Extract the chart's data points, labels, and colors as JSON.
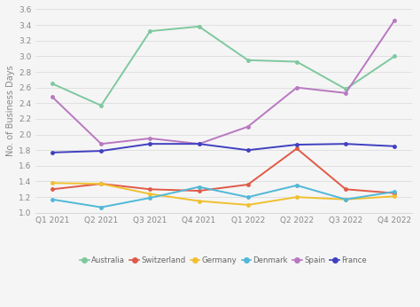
{
  "x_labels": [
    "Q1 2021",
    "Q2 2021",
    "Q3 2021",
    "Q4 2021",
    "Q1 2022",
    "Q2 2022",
    "Q3 2022",
    "Q4 2022"
  ],
  "series": {
    "Australia": [
      2.65,
      2.37,
      3.32,
      3.38,
      2.95,
      2.93,
      2.58,
      3.0
    ],
    "Switzerland": [
      1.3,
      1.37,
      1.3,
      1.28,
      1.36,
      1.82,
      1.3,
      1.25
    ],
    "Germany": [
      1.38,
      1.37,
      1.24,
      1.15,
      1.1,
      1.2,
      1.17,
      1.21
    ],
    "Denmark": [
      1.17,
      1.07,
      1.19,
      1.33,
      1.2,
      1.35,
      1.17,
      1.27
    ],
    "Spain": [
      2.48,
      1.88,
      1.95,
      1.88,
      2.1,
      2.6,
      2.53,
      3.46
    ],
    "France": [
      1.77,
      1.79,
      1.88,
      1.88,
      1.8,
      1.87,
      1.88,
      1.85
    ]
  },
  "colors": {
    "Australia": "#7ec8a0",
    "Switzerland": "#e05a48",
    "Germany": "#f0c030",
    "Denmark": "#50b8d8",
    "Spain": "#b878c0",
    "France": "#4040c0"
  },
  "ylabel": "No. of Business Days",
  "ylim": [
    1.0,
    3.6
  ],
  "yticks": [
    1.0,
    1.2,
    1.4,
    1.6,
    1.8,
    2.0,
    2.2,
    2.4,
    2.6,
    2.8,
    3.0,
    3.2,
    3.4,
    3.6
  ],
  "background_color": "#f5f5f5",
  "plot_bg_color": "#f5f5f5",
  "grid_color": "#dddddd",
  "marker": "o",
  "markersize": 3.5,
  "linewidth": 1.4,
  "tick_fontsize": 6.5,
  "ylabel_fontsize": 7,
  "legend_fontsize": 6.2
}
